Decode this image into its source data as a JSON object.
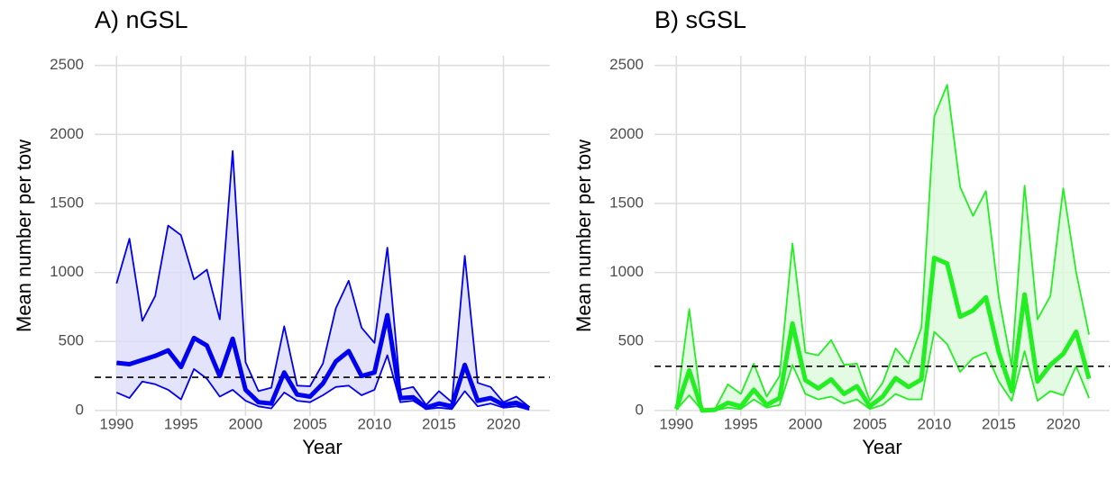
{
  "chart_data": [
    {
      "type": "line",
      "title": "A) nGSL",
      "x_label": "Year",
      "y_label": "Mean number per tow",
      "x": [
        1990,
        1991,
        1992,
        1993,
        1994,
        1995,
        1996,
        1997,
        1998,
        1999,
        2000,
        2001,
        2002,
        2003,
        2004,
        2005,
        2006,
        2007,
        2008,
        2009,
        2010,
        2011,
        2012,
        2013,
        2014,
        2015,
        2016,
        2017,
        2018,
        2019,
        2020,
        2021,
        2022
      ],
      "values": [
        345,
        335,
        365,
        395,
        435,
        315,
        525,
        470,
        250,
        520,
        150,
        60,
        50,
        275,
        115,
        100,
        195,
        355,
        430,
        250,
        275,
        690,
        90,
        95,
        20,
        50,
        30,
        330,
        70,
        90,
        40,
        55,
        15
      ],
      "upper": [
        920,
        1245,
        650,
        830,
        1340,
        1270,
        950,
        1020,
        660,
        1880,
        350,
        140,
        165,
        610,
        180,
        175,
        340,
        740,
        940,
        600,
        490,
        1180,
        150,
        170,
        40,
        140,
        60,
        1120,
        200,
        170,
        60,
        100,
        25
      ],
      "lower": [
        130,
        90,
        210,
        190,
        150,
        80,
        300,
        230,
        100,
        150,
        70,
        30,
        15,
        130,
        70,
        60,
        110,
        170,
        180,
        110,
        150,
        400,
        60,
        70,
        10,
        20,
        10,
        140,
        30,
        50,
        20,
        30,
        5
      ],
      "hline": 240,
      "color": "#0000ee",
      "fill": "#dcdcfa",
      "xlim": [
        1988.3,
        2023.6
      ],
      "ylim": [
        -40,
        2570
      ],
      "xticks": [
        1990,
        1995,
        2000,
        2005,
        2010,
        2015,
        2020
      ],
      "yticks": [
        0,
        500,
        1000,
        1500,
        2000,
        2500
      ],
      "grid": true
    },
    {
      "type": "line",
      "title": "B) sGSL",
      "x_label": "Year",
      "y_label": "Mean number per tow",
      "x": [
        1990,
        1991,
        1992,
        1993,
        1994,
        1995,
        1996,
        1997,
        1998,
        1999,
        2000,
        2001,
        2002,
        2003,
        2004,
        2005,
        2006,
        2007,
        2008,
        2009,
        2010,
        2011,
        2012,
        2013,
        2014,
        2015,
        2016,
        2017,
        2018,
        2019,
        2020,
        2021,
        2022
      ],
      "values": [
        10,
        290,
        0,
        5,
        55,
        30,
        150,
        40,
        90,
        630,
        220,
        160,
        225,
        120,
        175,
        30,
        100,
        235,
        170,
        225,
        1105,
        1065,
        680,
        725,
        820,
        420,
        140,
        840,
        210,
        330,
        410,
        570,
        230
      ],
      "upper": [
        30,
        735,
        0,
        10,
        190,
        120,
        340,
        100,
        250,
        1210,
        420,
        400,
        510,
        330,
        340,
        70,
        200,
        450,
        340,
        600,
        2130,
        2360,
        1620,
        1410,
        1590,
        820,
        320,
        1630,
        660,
        830,
        1610,
        1000,
        550
      ],
      "lower": [
        5,
        110,
        0,
        0,
        20,
        10,
        80,
        20,
        40,
        330,
        120,
        80,
        100,
        50,
        80,
        10,
        40,
        120,
        80,
        80,
        570,
        480,
        280,
        380,
        420,
        210,
        70,
        430,
        70,
        140,
        110,
        320,
        90
      ],
      "hline": 320,
      "color": "#22ee22",
      "fill": "#dcfadc",
      "xlim": [
        1988.3,
        2023.6
      ],
      "ylim": [
        -40,
        2570
      ],
      "xticks": [
        1990,
        1995,
        2000,
        2005,
        2010,
        2015,
        2020
      ],
      "yticks": [
        0,
        500,
        1000,
        1500,
        2000,
        2500
      ],
      "grid": true
    }
  ]
}
